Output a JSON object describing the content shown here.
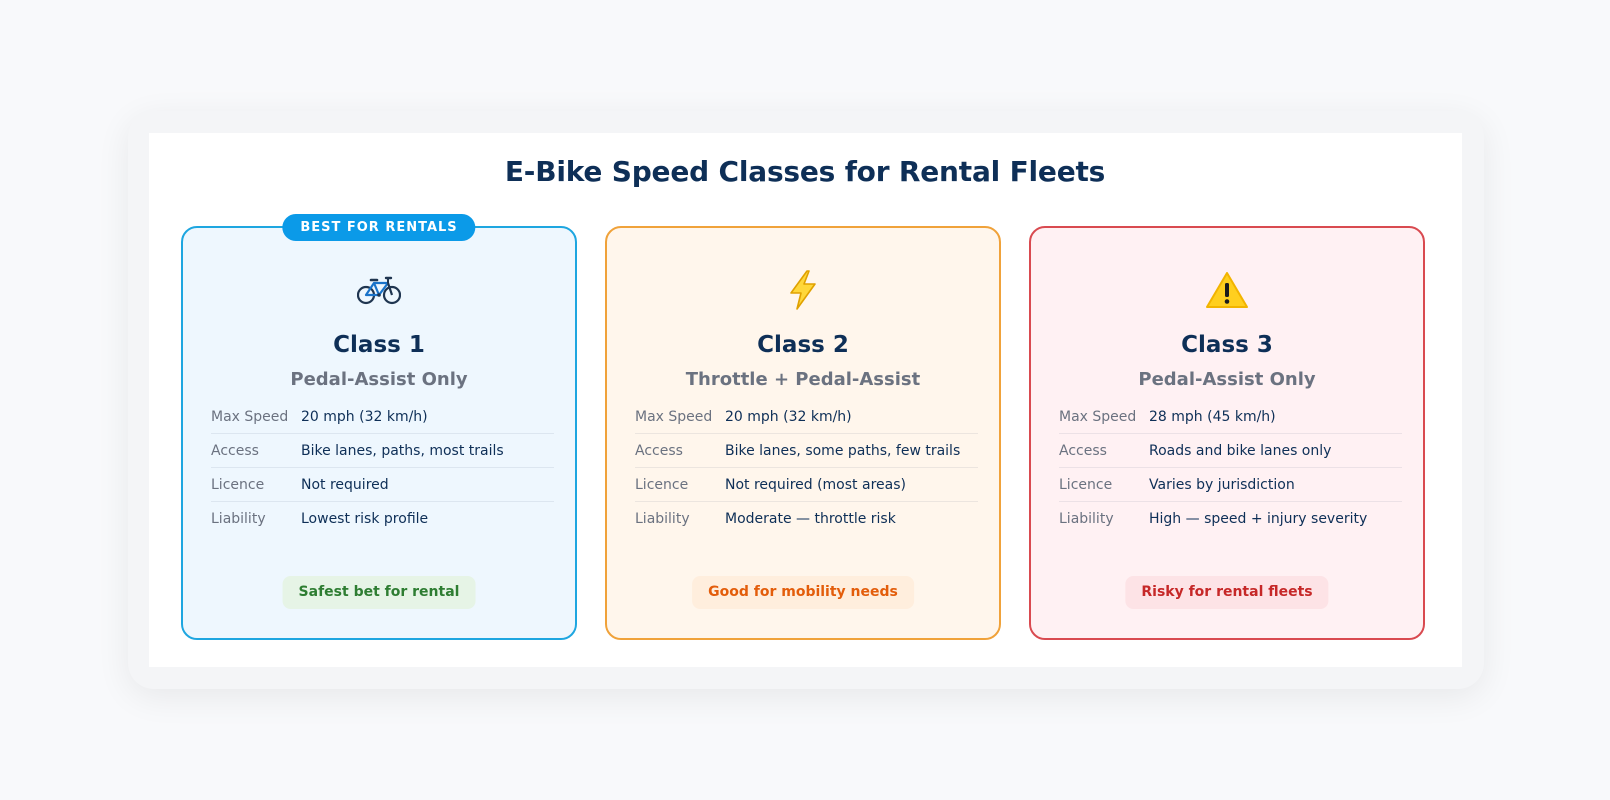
{
  "title": "E-Bike Speed Classes for Rental Fleets",
  "labels": {
    "max_speed": "Max Speed",
    "access": "Access",
    "licence": "Licence",
    "liability": "Liability"
  },
  "cards": [
    {
      "badge": "BEST FOR RENTALS",
      "icon": "bicycle-icon",
      "icon_glyph": "🚲",
      "title": "Class 1",
      "subtitle": "Pedal-Assist Only",
      "max_speed": "20 mph (32 km/h)",
      "access": "Bike lanes, paths, most trails",
      "licence": "Not required",
      "liability": "Lowest risk profile",
      "verdict": "Safest bet for rental",
      "colors": {
        "border": "#1ea6e0",
        "background": "#eef7fe",
        "badge": "#0b9ae8",
        "verdict_bg": "#e6f4e6",
        "verdict_text": "#2e7d32"
      }
    },
    {
      "icon": "lightning-icon",
      "icon_glyph": "⚡",
      "title": "Class 2",
      "subtitle": "Throttle + Pedal-Assist",
      "max_speed": "20 mph (32 km/h)",
      "access": "Bike lanes, some paths, few trails",
      "licence": "Not required (most areas)",
      "liability": "Moderate — throttle risk",
      "verdict": "Good for mobility needs",
      "colors": {
        "border": "#f0a23a",
        "background": "#fff6ec",
        "verdict_bg": "#ffeedd",
        "verdict_text": "#e35d0b"
      }
    },
    {
      "icon": "warning-icon",
      "icon_glyph": "⚠️",
      "title": "Class 3",
      "subtitle": "Pedal-Assist Only",
      "max_speed": "28 mph (45 km/h)",
      "access": "Roads and bike lanes only",
      "licence": "Varies by jurisdiction",
      "liability": "High — speed + injury severity",
      "verdict": "Risky for rental fleets",
      "colors": {
        "border": "#d94a50",
        "background": "#fff1f3",
        "verdict_bg": "#fde3e6",
        "verdict_text": "#c62828"
      }
    }
  ]
}
